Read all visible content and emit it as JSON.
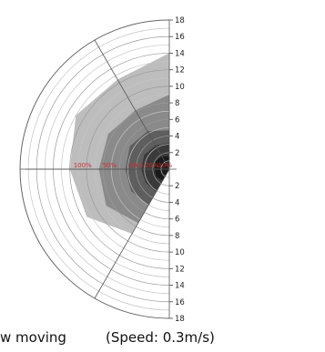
{
  "chart_data": {
    "type": "polar-area",
    "orientation": "half-polar, left half, vertical axis on the right",
    "radial_axis": {
      "ticks_upper": [
        "18",
        "16",
        "14",
        "12",
        "10",
        "8",
        "6",
        "4",
        "2"
      ],
      "ticks_lower": [
        "2",
        "4",
        "6",
        "8",
        "10",
        "12",
        "14",
        "16",
        "18"
      ],
      "range": [
        0,
        18
      ]
    },
    "contour_labels": [
      "100%",
      "50%",
      "30%",
      "20%",
      "10%"
    ],
    "contour_label_color": "#d03030",
    "spoke_angles_deg": [
      0,
      30,
      90,
      150,
      180
    ],
    "levels": [
      {
        "label": "100%",
        "color": "#bdbdbd",
        "radii": [
          14,
          12.5,
          13,
          12,
          11.5,
          9,
          0
        ]
      },
      {
        "label": "50%",
        "color": "#8a8a8a",
        "radii": [
          9,
          8.2,
          8.5,
          8.5,
          8.8,
          7.5,
          0
        ]
      },
      {
        "label": "30%",
        "color": "#5e5e5e",
        "radii": [
          4.7,
          5.3,
          5.5,
          5.3,
          5.3,
          5.0,
          0
        ]
      },
      {
        "label": "20%",
        "color": "#3a3a3a",
        "radii": [
          3.2,
          3.3,
          3.5,
          3.4,
          3.3,
          3.2,
          0
        ]
      },
      {
        "label": "10%",
        "color": "#1a1a1a",
        "radii": [
          1.5,
          1.8,
          1.9,
          1.8,
          1.8,
          1.6,
          0
        ]
      }
    ],
    "level_angles_deg": [
      0,
      30,
      60,
      90,
      120,
      150,
      180
    ]
  },
  "caption": {
    "text_left": "w moving",
    "text_right": "(Speed:  0.3m/s)"
  }
}
